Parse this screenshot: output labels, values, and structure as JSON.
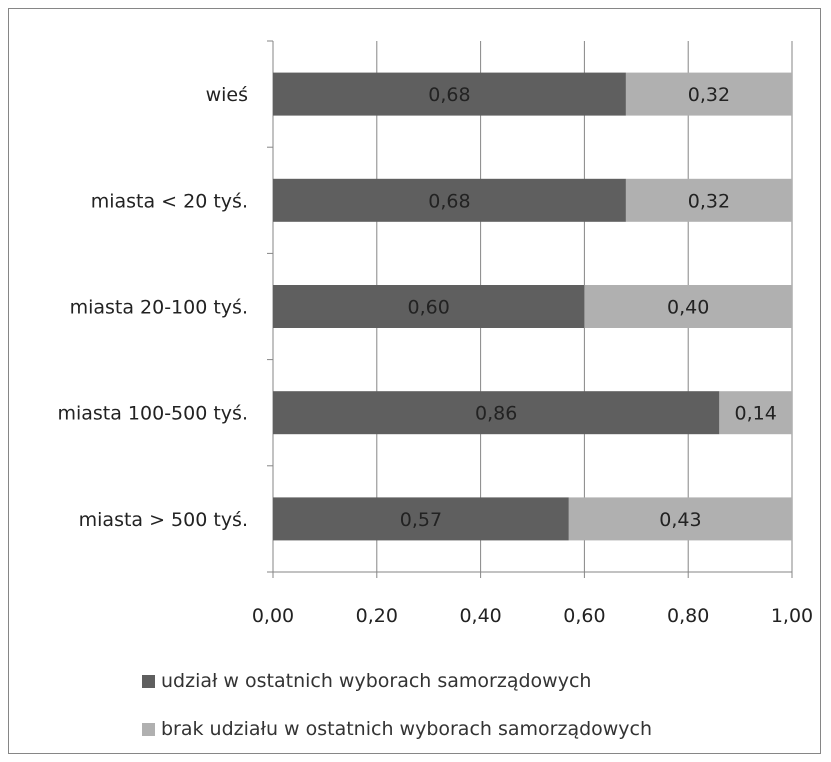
{
  "chart_data": {
    "type": "bar",
    "orientation": "horizontal",
    "stacked": true,
    "categories": [
      "wieś",
      "miasta < 20 tyś.",
      "miasta 20-100 tyś.",
      "miasta 100-500 tyś.",
      "miasta > 500 tyś."
    ],
    "series": [
      {
        "name": "udział w ostatnich wyborach samorządowych",
        "color": "#5f5f5f",
        "values": [
          0.68,
          0.68,
          0.6,
          0.86,
          0.57
        ],
        "labels": [
          "0,68",
          "0,68",
          "0,60",
          "0,86",
          "0,57"
        ]
      },
      {
        "name": "brak udziału w ostatnich wyborach samorządowych",
        "color": "#b0b0b0",
        "values": [
          0.32,
          0.32,
          0.4,
          0.14,
          0.43
        ],
        "labels": [
          "0,32",
          "0,32",
          "0,40",
          "0,14",
          "0,43"
        ]
      }
    ],
    "xlim": [
      0,
      1
    ],
    "xticks": [
      "0,00",
      "0,20",
      "0,40",
      "0,60",
      "0,80",
      "1,00"
    ],
    "grid": true,
    "legend_position": "bottom"
  }
}
